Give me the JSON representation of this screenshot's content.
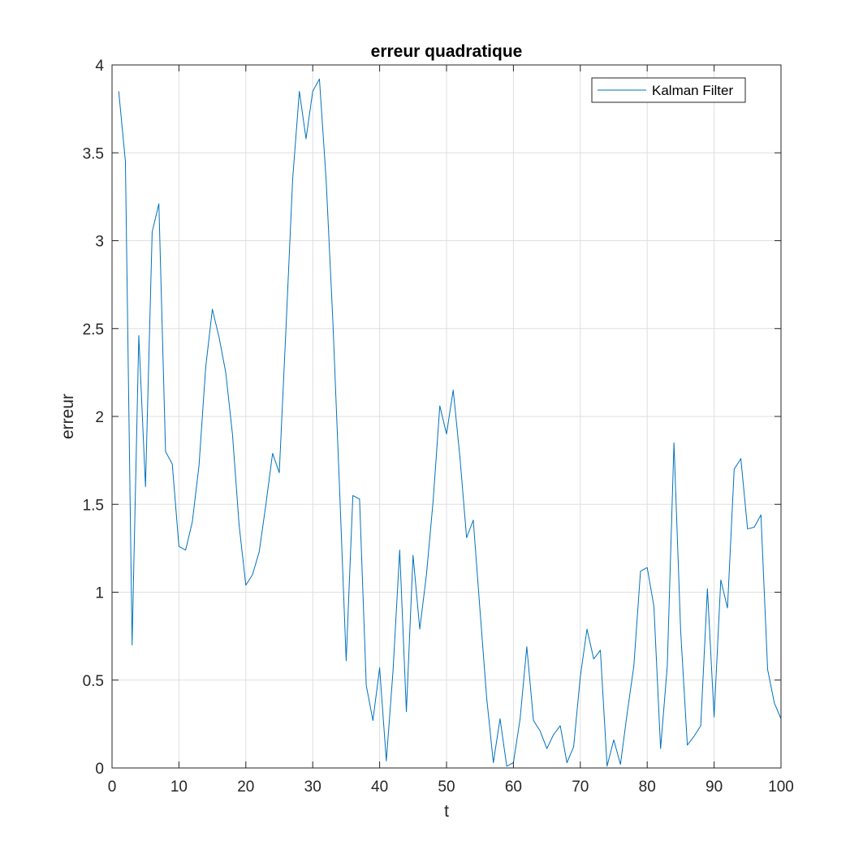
{
  "chart_data": {
    "type": "line",
    "title": "erreur quadratique",
    "xlabel": "t",
    "ylabel": "erreur",
    "xlim": [
      0,
      100
    ],
    "ylim": [
      0,
      4
    ],
    "xticks": [
      0,
      10,
      20,
      30,
      40,
      50,
      60,
      70,
      80,
      90,
      100
    ],
    "yticks": [
      0,
      0.5,
      1,
      1.5,
      2,
      2.5,
      3,
      3.5,
      4
    ],
    "ytick_labels": [
      "0",
      "0.5",
      "1",
      "1.5",
      "2",
      "2.5",
      "3",
      "3.5",
      "4"
    ],
    "grid": true,
    "legend_position": "top-right",
    "series": [
      {
        "name": "Kalman Filter",
        "color": "#0072bd",
        "x": [
          1,
          2,
          3,
          4,
          5,
          6,
          7,
          8,
          9,
          10,
          11,
          12,
          13,
          14,
          15,
          16,
          17,
          18,
          19,
          20,
          21,
          22,
          23,
          24,
          25,
          26,
          27,
          28,
          29,
          30,
          31,
          32,
          33,
          34,
          35,
          36,
          37,
          38,
          39,
          40,
          41,
          42,
          43,
          44,
          45,
          46,
          47,
          48,
          49,
          50,
          51,
          52,
          53,
          54,
          55,
          56,
          57,
          58,
          59,
          60,
          61,
          62,
          63,
          64,
          65,
          66,
          67,
          68,
          69,
          70,
          71,
          72,
          73,
          74,
          75,
          76,
          77,
          78,
          79,
          80,
          81,
          82,
          83,
          84,
          85,
          86,
          87,
          88,
          89,
          90,
          91,
          92,
          93,
          94,
          95,
          96,
          97,
          98,
          99,
          100
        ],
        "y": [
          3.85,
          3.45,
          0.7,
          2.46,
          1.6,
          3.05,
          3.21,
          1.8,
          1.73,
          1.26,
          1.24,
          1.4,
          1.72,
          2.28,
          2.61,
          2.45,
          2.25,
          1.9,
          1.38,
          1.04,
          1.1,
          1.23,
          1.5,
          1.79,
          1.68,
          2.5,
          3.35,
          3.85,
          3.58,
          3.85,
          3.92,
          3.35,
          2.55,
          1.6,
          0.61,
          1.55,
          1.53,
          0.47,
          0.27,
          0.57,
          0.04,
          0.55,
          1.24,
          0.32,
          1.21,
          0.79,
          1.1,
          1.52,
          2.06,
          1.9,
          2.15,
          1.77,
          1.31,
          1.41,
          0.9,
          0.4,
          0.03,
          0.28,
          0.01,
          0.03,
          0.28,
          0.69,
          0.27,
          0.21,
          0.11,
          0.19,
          0.24,
          0.03,
          0.12,
          0.52,
          0.79,
          0.62,
          0.67,
          0.01,
          0.16,
          0.02,
          0.31,
          0.58,
          1.12,
          1.14,
          0.92,
          0.11,
          0.58,
          1.85,
          0.78,
          0.13,
          0.18,
          0.24,
          1.02,
          0.29,
          1.07,
          0.91,
          1.7,
          1.76,
          1.36,
          1.37,
          1.44,
          0.56,
          0.37,
          0.28
        ]
      }
    ]
  }
}
